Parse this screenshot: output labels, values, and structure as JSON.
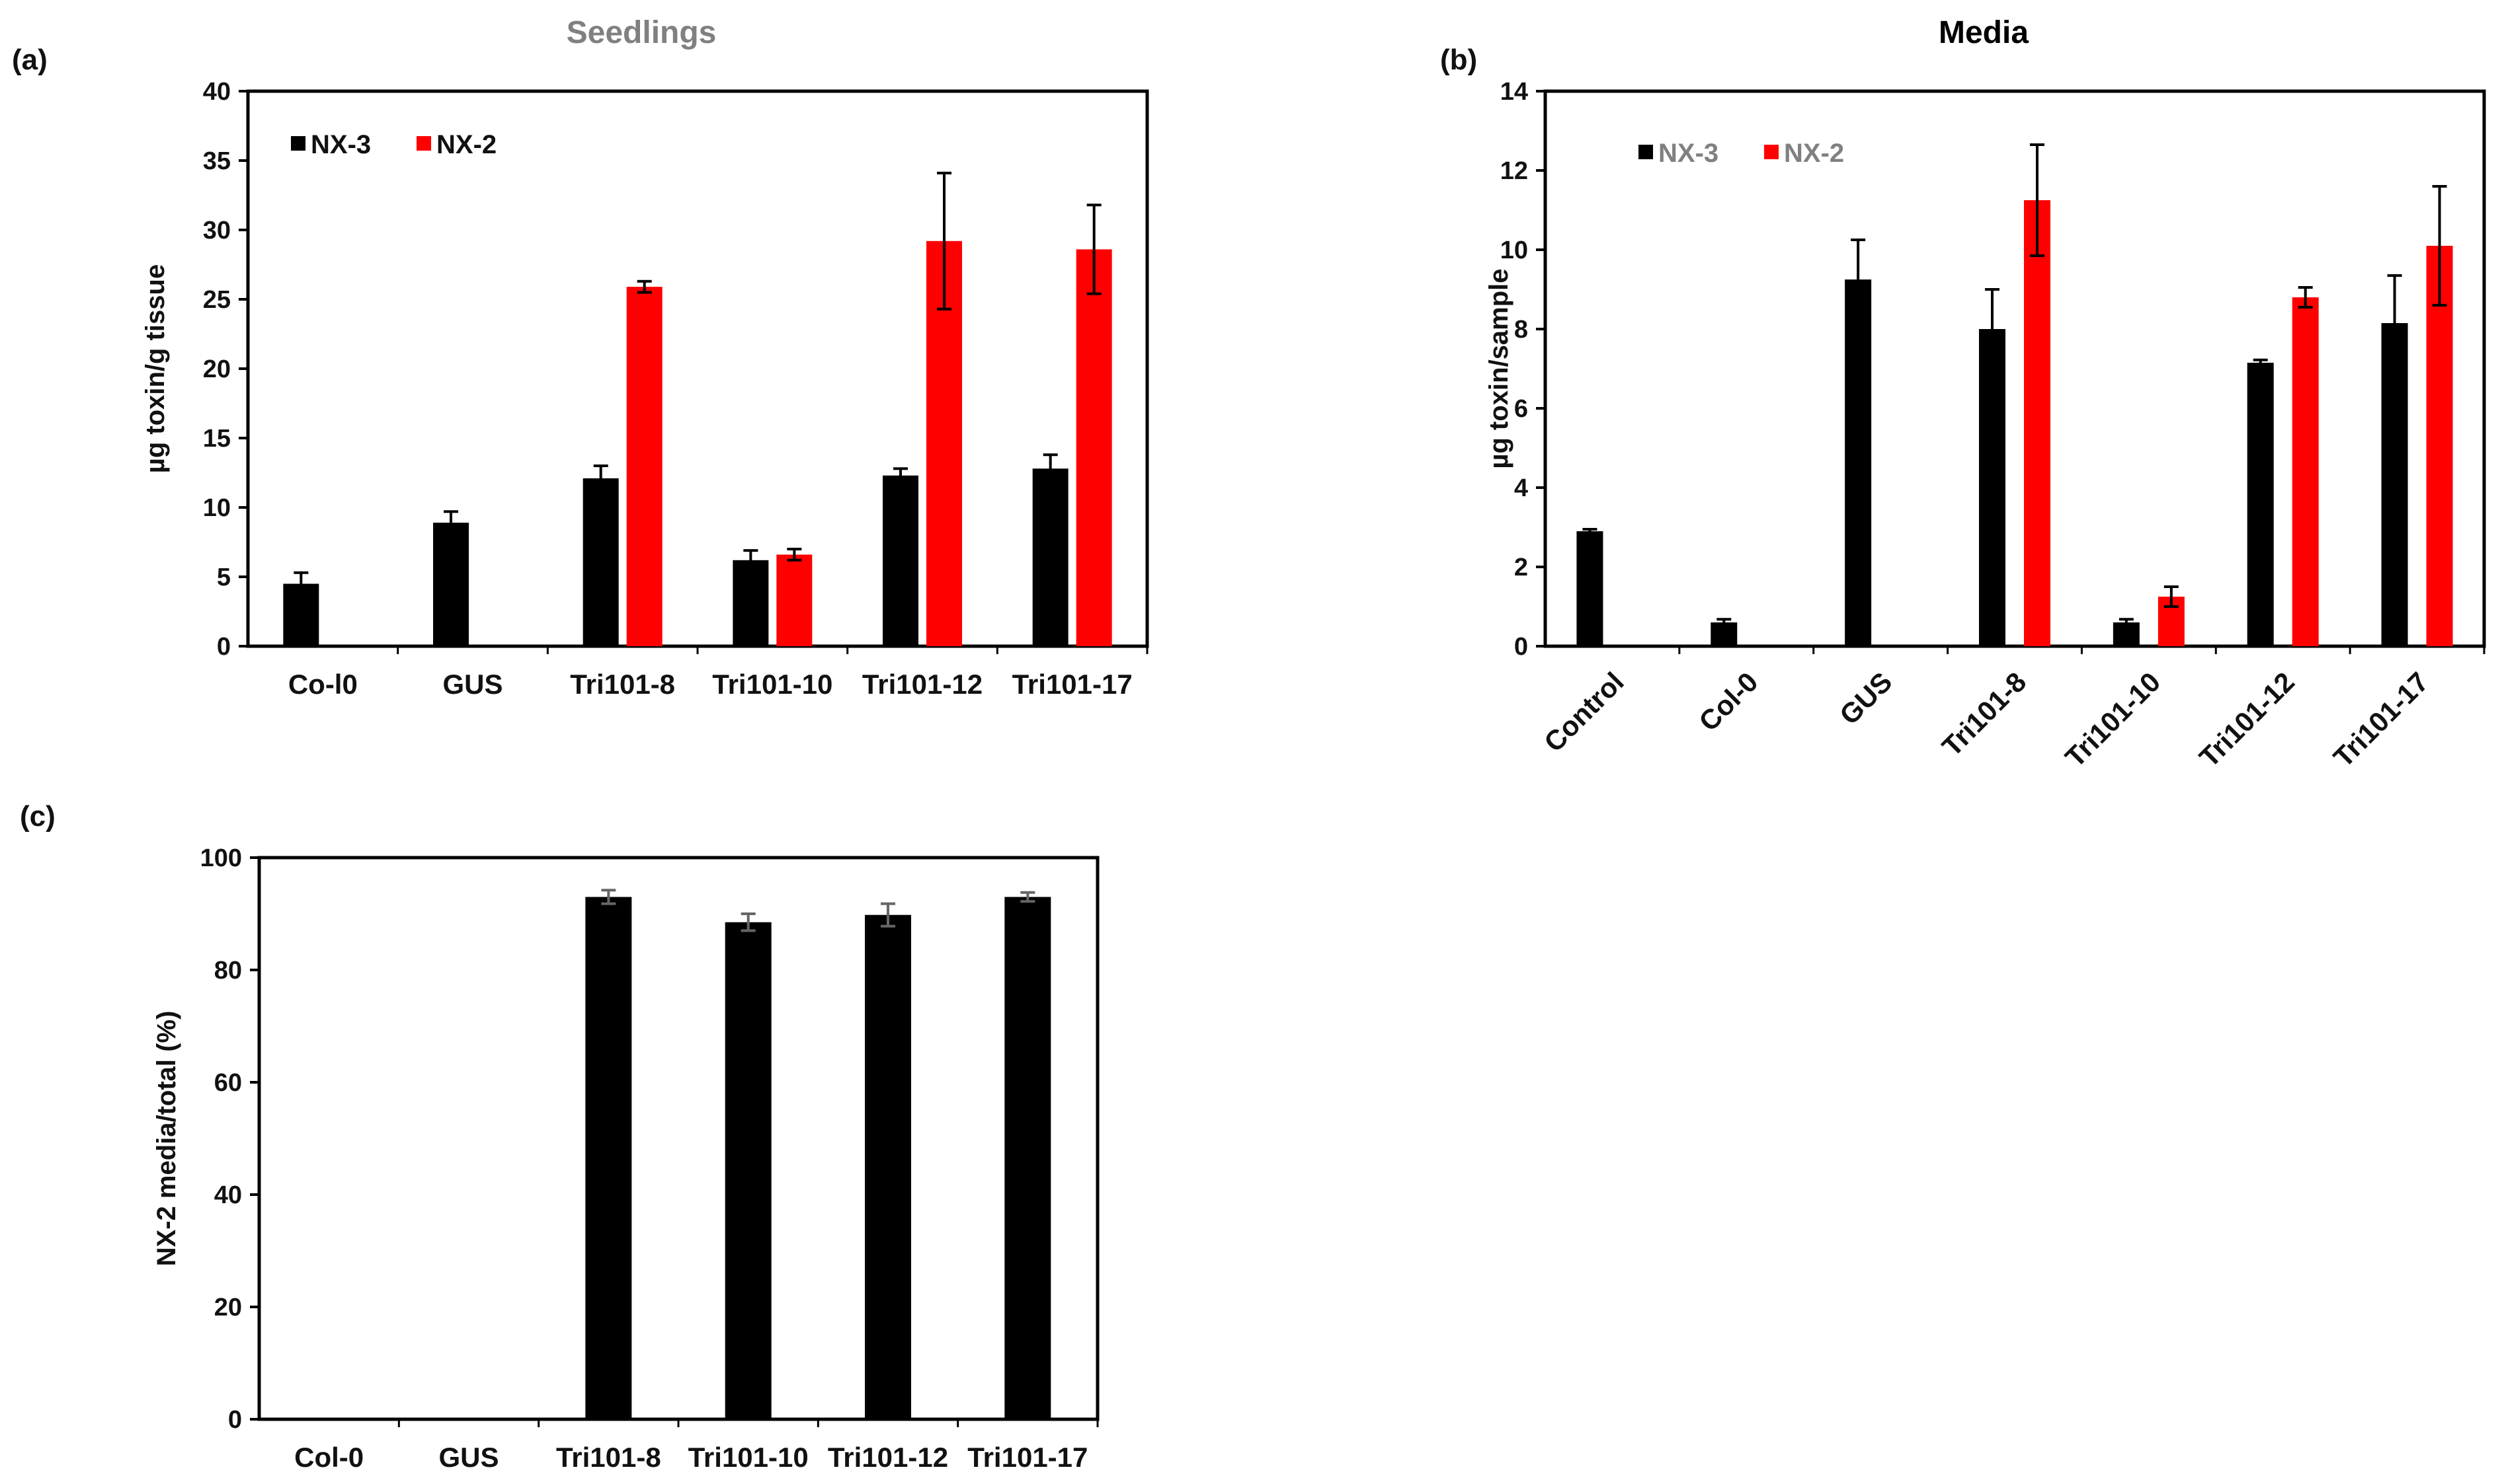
{
  "figure_labels": {
    "a": "(a)",
    "b": "(b)",
    "c": "(c)"
  },
  "chart_data": [
    {
      "id": "a",
      "type": "bar",
      "title": "Seedlings",
      "title_color": "#808080",
      "xlabel": "",
      "ylabel": "µg toxin/g tissue",
      "ylim": [
        0,
        40
      ],
      "yticks": [
        0,
        5,
        10,
        15,
        20,
        25,
        30,
        35,
        40
      ],
      "categories": [
        "Co-l0",
        "GUS",
        "Tri101-8",
        "Tri101-10",
        "Tri101-12",
        "Tri101-17"
      ],
      "legend_position": "top-left",
      "legend_text_color": "#111111",
      "series": [
        {
          "name": "NX-3",
          "color": "#000000",
          "values": [
            4.5,
            8.9,
            12.1,
            6.2,
            12.3,
            12.8
          ],
          "errors": [
            0.8,
            0.8,
            0.9,
            0.7,
            0.5,
            1.0
          ]
        },
        {
          "name": "NX-2",
          "color": "#ff0000",
          "values": [
            null,
            null,
            25.9,
            6.6,
            29.2,
            28.6
          ],
          "errors": [
            null,
            null,
            0.4,
            0.4,
            4.9,
            3.2
          ]
        }
      ]
    },
    {
      "id": "b",
      "type": "bar",
      "title": "Media",
      "title_color": "#000000",
      "xlabel": "",
      "ylabel": "µg toxin/sample",
      "ylim": [
        0,
        14
      ],
      "yticks": [
        0,
        2,
        4,
        6,
        8,
        10,
        12,
        14
      ],
      "categories": [
        "Control",
        "Col-0",
        "GUS",
        "Tri101-8",
        "Tri101-10",
        "Tri101-12",
        "Tri101-17"
      ],
      "legend_position": "top-left",
      "legend_text_color": "#808080",
      "series": [
        {
          "name": "NX-3",
          "color": "#000000",
          "values": [
            2.9,
            0.6,
            9.25,
            8.0,
            0.6,
            7.15,
            8.15
          ],
          "errors": [
            0.05,
            0.08,
            1.0,
            1.0,
            0.08,
            0.07,
            1.2
          ]
        },
        {
          "name": "NX-2",
          "color": "#ff0000",
          "values": [
            null,
            null,
            null,
            11.25,
            1.25,
            8.8,
            10.1
          ],
          "errors": [
            null,
            null,
            null,
            1.4,
            0.25,
            0.25,
            1.5
          ]
        }
      ]
    },
    {
      "id": "c",
      "type": "bar",
      "title": "",
      "xlabel": "",
      "ylabel": "NX-2 media/total (%)",
      "ylim": [
        0,
        100
      ],
      "yticks": [
        0,
        20,
        40,
        60,
        80,
        100
      ],
      "categories": [
        "Col-0",
        "GUS",
        "Tri101-8",
        "Tri101-10",
        "Tri101-12",
        "Tri101-17"
      ],
      "series": [
        {
          "name": "NX-2 media/total",
          "color": "#000000",
          "values": [
            0,
            0,
            93.0,
            88.5,
            89.8,
            93.0
          ],
          "errors": [
            0,
            0,
            1.2,
            1.5,
            2.0,
            0.8
          ]
        }
      ]
    }
  ]
}
